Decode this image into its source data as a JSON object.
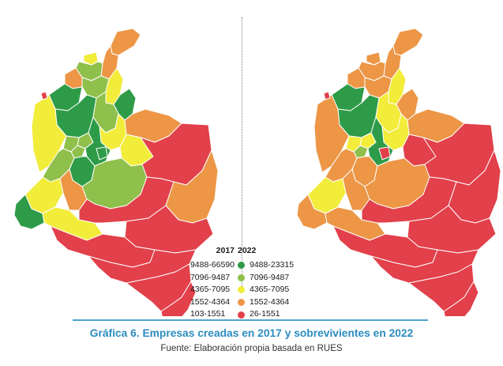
{
  "colors": {
    "class1": "#2e9b48",
    "class2": "#8fc04b",
    "class3": "#f2ec3a",
    "class4": "#ec9646",
    "class5": "#e2404a",
    "border": "#ffffff",
    "caption": "#2b8cbf"
  },
  "legend": {
    "left": {
      "year": "2017",
      "classes": [
        "9488-66590",
        "7096-9487",
        "4365-7095",
        "1552-4364",
        "103-1551"
      ]
    },
    "right": {
      "year": "2022",
      "classes": [
        "9488-23315",
        "7096-9487",
        "4365-7095",
        "1552-4364",
        "26-1551"
      ]
    }
  },
  "maps": [
    {
      "year": "2017",
      "region_classes": [
        4,
        4,
        3,
        2,
        2,
        3,
        4,
        1,
        1,
        1,
        2,
        3,
        4,
        3,
        3,
        2,
        2,
        1,
        1,
        2,
        1,
        2,
        3,
        4,
        1,
        3,
        2,
        5,
        5,
        4,
        5,
        5,
        5,
        5,
        5,
        5
      ]
    },
    {
      "year": "2022",
      "region_classes": [
        4,
        4,
        4,
        4,
        4,
        3,
        4,
        1,
        1,
        4,
        3,
        3,
        4,
        5,
        4,
        3,
        3,
        1,
        5,
        2,
        4,
        4,
        3,
        4,
        4,
        4,
        4,
        5,
        5,
        5,
        5,
        5,
        5,
        5,
        5,
        5
      ]
    }
  ],
  "caption": "Gráfica 6. Empresas creadas en 2017 y sobrevivientes en 2022",
  "source": "Fuente: Elaboración propia basada en RUES"
}
